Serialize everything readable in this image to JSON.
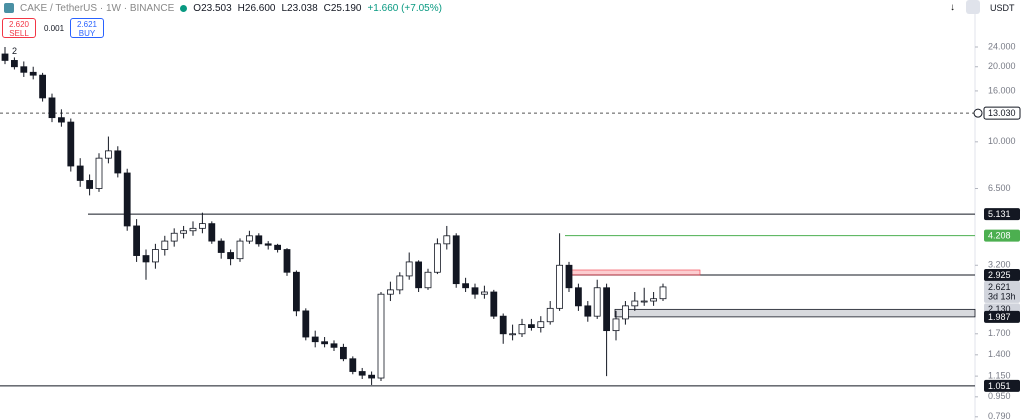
{
  "header": {
    "symbol": "CAKE / TetherUS · 1W · BINANCE",
    "open": "O23.503",
    "high": "H26.600",
    "low": "L23.038",
    "close": "C25.190",
    "change": "+1.660 (+7.05%)",
    "currency": "USDT"
  },
  "trade": {
    "sell_price": "2.620",
    "sell_label": "SELL",
    "spread": "0.001",
    "buy_price": "2.621",
    "buy_label": "BUY"
  },
  "marker": "2",
  "chart_data": {
    "type": "candlestick",
    "log_scale": true,
    "ylim": [
      0.767,
      25.6
    ],
    "yticks": [
      {
        "value": 24,
        "label": "24.000"
      },
      {
        "value": 20,
        "label": "20.000"
      },
      {
        "value": 16,
        "label": "16.000"
      },
      {
        "value": 10,
        "label": "10.000"
      },
      {
        "value": 6.5,
        "label": "6.500"
      },
      {
        "value": 3.2,
        "label": "3.200"
      },
      {
        "value": 1.7,
        "label": "1.700"
      },
      {
        "value": 1.4,
        "label": "1.400"
      },
      {
        "value": 1.15,
        "label": "1.150"
      },
      {
        "value": 0.95,
        "label": "0.950"
      },
      {
        "value": 0.79,
        "label": "0.790"
      }
    ],
    "up_color": "#ffffff",
    "down_color": "#131722",
    "open": [
      22.5,
      21.2,
      20,
      19,
      18.5,
      15,
      12.5,
      12,
      8,
      7,
      6.5,
      8.6,
      9.2,
      7.5,
      4.6,
      3.5,
      3.3,
      3.7,
      4.0,
      4.3,
      4.4,
      4.5,
      4.7,
      4.0,
      3.6,
      3.4,
      4.0,
      4.2,
      3.9,
      3.85,
      3.7,
      3.0,
      2.1,
      1.65,
      1.58,
      1.55,
      1.5,
      1.35,
      1.2,
      1.16,
      1.13,
      2.45,
      2.55,
      2.9,
      3.3,
      2.6,
      3.0,
      3.9,
      4.2,
      2.7,
      2.6,
      2.45,
      2.5,
      2.0,
      1.7,
      1.7,
      1.85,
      1.8,
      1.9,
      2.15,
      3.2,
      2.6,
      2.2,
      2.0,
      2.6,
      1.75,
      1.95,
      2.2,
      2.3,
      2.3,
      2.35
    ],
    "high": [
      24,
      21.8,
      21,
      20,
      18.9,
      15.6,
      13.5,
      12.4,
      8.6,
      7.4,
      9,
      10.5,
      9.6,
      7.8,
      4.9,
      3.7,
      3.9,
      4.2,
      4.5,
      4.6,
      4.8,
      5.2,
      4.8,
      4.1,
      3.7,
      4.1,
      4.4,
      4.3,
      4.0,
      3.9,
      3.75,
      3.05,
      2.15,
      1.75,
      1.65,
      1.6,
      1.55,
      1.38,
      1.24,
      1.2,
      2.5,
      2.75,
      3.0,
      3.6,
      3.35,
      3.1,
      4.1,
      4.6,
      4.3,
      2.85,
      2.7,
      2.65,
      2.55,
      2.05,
      1.85,
      1.95,
      1.95,
      2.0,
      2.3,
      4.3,
      3.3,
      2.7,
      2.3,
      2.8,
      2.7,
      2.1,
      2.3,
      2.5,
      2.6,
      2.5,
      2.7
    ],
    "low": [
      20.5,
      19.5,
      18.2,
      17.8,
      14.5,
      12,
      11.5,
      7.6,
      6.6,
      6.1,
      6.3,
      8.2,
      7.2,
      4.4,
      3.3,
      2.8,
      3.1,
      3.5,
      3.8,
      4.1,
      4.2,
      4.3,
      3.9,
      3.4,
      3.2,
      3.3,
      3.9,
      3.8,
      3.7,
      3.6,
      2.9,
      2.0,
      1.6,
      1.5,
      1.5,
      1.45,
      1.32,
      1.17,
      1.12,
      1.06,
      1.1,
      2.3,
      2.45,
      2.8,
      2.5,
      2.55,
      2.95,
      3.7,
      2.6,
      2.5,
      2.35,
      2.35,
      1.95,
      1.55,
      1.6,
      1.65,
      1.75,
      1.72,
      1.85,
      2.1,
      2.5,
      2.1,
      1.9,
      1.95,
      1.15,
      1.6,
      1.85,
      2.1,
      2.2,
      2.2,
      2.3
    ],
    "close": [
      21.2,
      20,
      19,
      18.5,
      15,
      12.5,
      12,
      8,
      7,
      6.5,
      8.6,
      9.2,
      7.5,
      4.6,
      3.5,
      3.3,
      3.7,
      4.0,
      4.3,
      4.4,
      4.5,
      4.7,
      4.0,
      3.6,
      3.4,
      4.0,
      4.2,
      3.9,
      3.85,
      3.7,
      3.0,
      2.1,
      1.65,
      1.58,
      1.55,
      1.5,
      1.35,
      1.2,
      1.16,
      1.13,
      2.45,
      2.55,
      2.9,
      3.3,
      2.6,
      3.0,
      3.9,
      4.2,
      2.7,
      2.6,
      2.45,
      2.5,
      2.0,
      1.7,
      1.7,
      1.85,
      1.8,
      1.9,
      2.15,
      3.2,
      2.6,
      2.2,
      2.0,
      2.6,
      1.75,
      1.95,
      2.2,
      2.3,
      2.3,
      2.35,
      2.62
    ],
    "levels": [
      {
        "value": 13.03,
        "label": "13.030",
        "color": "#555555",
        "dashed": true
      },
      {
        "value": 5.131,
        "label": "5.131",
        "color": "#131722",
        "dashed": false
      },
      {
        "value": 4.208,
        "label": "4.208",
        "color": "#4caf50",
        "dashed": false
      },
      {
        "value": 2.925,
        "label": "2.925",
        "color": "#131722",
        "dashed": false
      },
      {
        "value": 1.051,
        "label": "1.051",
        "color": "#131722",
        "dashed": false
      }
    ],
    "zone": {
      "high": 2.13,
      "low": 1.987,
      "high_label": "2.130",
      "low_label": "1.987",
      "color": "#b2b5be"
    },
    "last_price": {
      "value": 2.621,
      "label": "2.621",
      "countdown": "3d 13h"
    }
  }
}
